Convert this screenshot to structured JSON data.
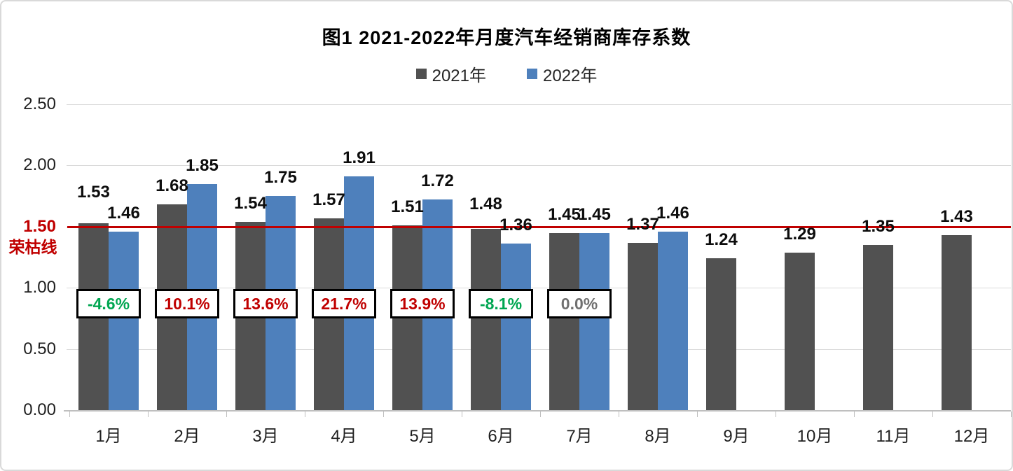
{
  "chart_data": {
    "type": "bar",
    "title": "图1  2021-2022年月度汽车经销商库存系数",
    "categories": [
      "1月",
      "2月",
      "3月",
      "4月",
      "5月",
      "6月",
      "7月",
      "8月",
      "9月",
      "10月",
      "11月",
      "12月"
    ],
    "series": [
      {
        "name": "2021年",
        "color": "#515151",
        "values": [
          1.53,
          1.68,
          1.54,
          1.57,
          1.51,
          1.48,
          1.45,
          1.37,
          1.24,
          1.29,
          1.35,
          1.43
        ]
      },
      {
        "name": "2022年",
        "color": "#4E80BC",
        "values": [
          1.46,
          1.85,
          1.75,
          1.91,
          1.72,
          1.36,
          1.45,
          1.46,
          null,
          null,
          null,
          null
        ]
      }
    ],
    "ylim": [
      0,
      2.5
    ],
    "yticks": [
      {
        "value": 0.0,
        "label": "0.00"
      },
      {
        "value": 0.5,
        "label": "0.50"
      },
      {
        "value": 1.0,
        "label": "1.00"
      },
      {
        "value": 1.5,
        "label": "1.50"
      },
      {
        "value": 2.0,
        "label": "2.00"
      },
      {
        "value": 2.5,
        "label": "2.50"
      }
    ],
    "reference_line": {
      "value": 1.5,
      "label": "1.50",
      "name": "荣枯线",
      "color": "#C00000"
    },
    "annotations": [
      {
        "category": "1月",
        "label": "-4.6%",
        "color": "#00A651"
      },
      {
        "category": "2月",
        "label": "10.1%",
        "color": "#C00000"
      },
      {
        "category": "3月",
        "label": "13.6%",
        "color": "#C00000"
      },
      {
        "category": "4月",
        "label": "21.7%",
        "color": "#C00000"
      },
      {
        "category": "5月",
        "label": "13.9%",
        "color": "#C00000"
      },
      {
        "category": "6月",
        "label": "-8.1%",
        "color": "#00A651"
      },
      {
        "category": "7月",
        "label": "0.0%",
        "color": "#707070"
      }
    ],
    "grid": true,
    "legend_position": "top"
  }
}
